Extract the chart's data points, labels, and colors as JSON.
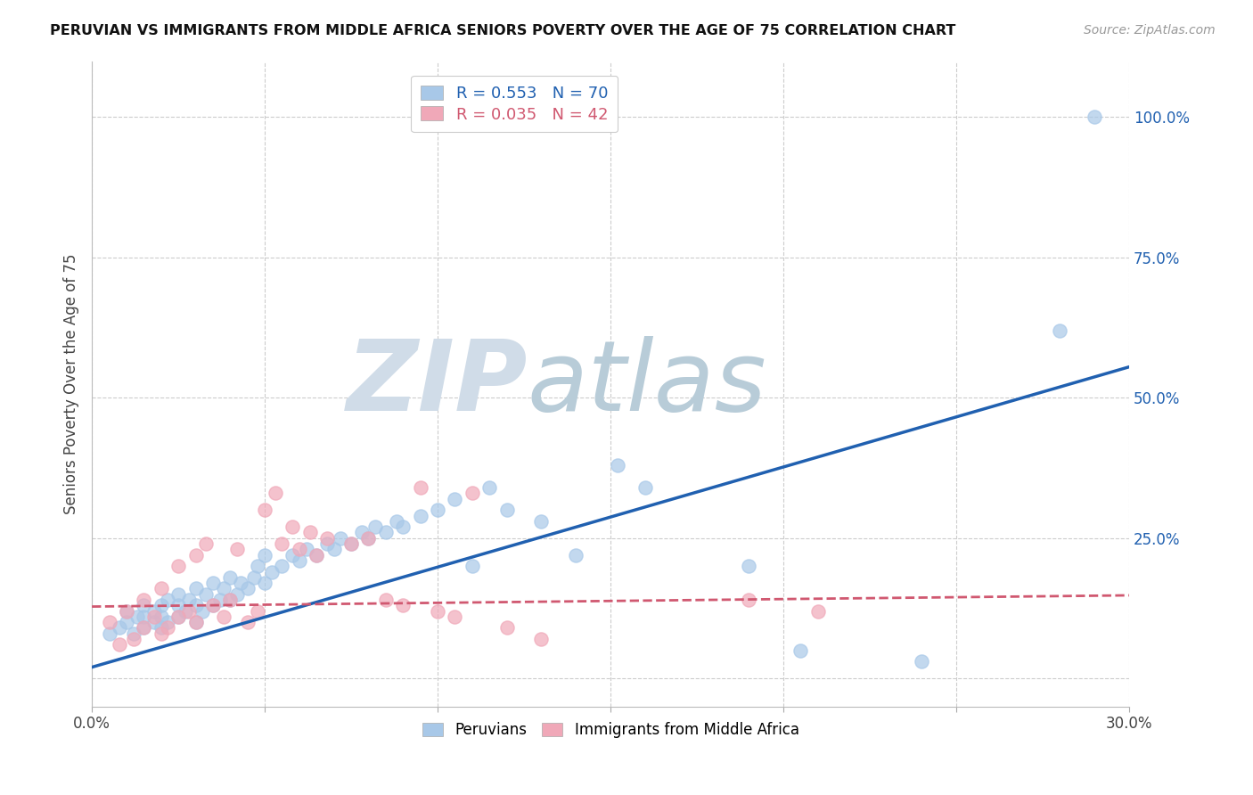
{
  "title": "PERUVIAN VS IMMIGRANTS FROM MIDDLE AFRICA SENIORS POVERTY OVER THE AGE OF 75 CORRELATION CHART",
  "source": "Source: ZipAtlas.com",
  "ylabel": "Seniors Poverty Over the Age of 75",
  "xlim": [
    0.0,
    0.3
  ],
  "ylim": [
    -0.05,
    1.1
  ],
  "blue_R": 0.553,
  "blue_N": 70,
  "pink_R": 0.035,
  "pink_N": 42,
  "blue_color": "#a8c8e8",
  "pink_color": "#f0a8b8",
  "blue_line_color": "#2060b0",
  "pink_line_color": "#d05870",
  "blue_trend_x0": 0.0,
  "blue_trend_y0": 0.02,
  "blue_trend_x1": 0.3,
  "blue_trend_y1": 0.555,
  "pink_trend_x0": 0.0,
  "pink_trend_y0": 0.128,
  "pink_trend_x1": 0.3,
  "pink_trend_y1": 0.148,
  "background_color": "#ffffff",
  "grid_color": "#cccccc",
  "watermark_zip_color": "#d0dce8",
  "watermark_atlas_color": "#b8ccd8",
  "blue_scatter_x": [
    0.005,
    0.008,
    0.01,
    0.01,
    0.012,
    0.013,
    0.015,
    0.015,
    0.015,
    0.018,
    0.018,
    0.02,
    0.02,
    0.02,
    0.022,
    0.022,
    0.025,
    0.025,
    0.025,
    0.027,
    0.028,
    0.03,
    0.03,
    0.03,
    0.032,
    0.033,
    0.035,
    0.035,
    0.037,
    0.038,
    0.04,
    0.04,
    0.042,
    0.043,
    0.045,
    0.047,
    0.048,
    0.05,
    0.05,
    0.052,
    0.055,
    0.058,
    0.06,
    0.062,
    0.065,
    0.068,
    0.07,
    0.072,
    0.075,
    0.078,
    0.08,
    0.082,
    0.085,
    0.088,
    0.09,
    0.095,
    0.1,
    0.105,
    0.11,
    0.115,
    0.12,
    0.13,
    0.14,
    0.152,
    0.16,
    0.19,
    0.205,
    0.24,
    0.28,
    0.29
  ],
  "blue_scatter_y": [
    0.08,
    0.09,
    0.1,
    0.12,
    0.08,
    0.11,
    0.09,
    0.11,
    0.13,
    0.1,
    0.12,
    0.09,
    0.11,
    0.13,
    0.1,
    0.14,
    0.11,
    0.13,
    0.15,
    0.12,
    0.14,
    0.1,
    0.13,
    0.16,
    0.12,
    0.15,
    0.13,
    0.17,
    0.14,
    0.16,
    0.14,
    0.18,
    0.15,
    0.17,
    0.16,
    0.18,
    0.2,
    0.17,
    0.22,
    0.19,
    0.2,
    0.22,
    0.21,
    0.23,
    0.22,
    0.24,
    0.23,
    0.25,
    0.24,
    0.26,
    0.25,
    0.27,
    0.26,
    0.28,
    0.27,
    0.29,
    0.3,
    0.32,
    0.2,
    0.34,
    0.3,
    0.28,
    0.22,
    0.38,
    0.34,
    0.2,
    0.05,
    0.03,
    0.62,
    1.0
  ],
  "pink_scatter_x": [
    0.005,
    0.008,
    0.01,
    0.012,
    0.015,
    0.015,
    0.018,
    0.02,
    0.02,
    0.022,
    0.025,
    0.025,
    0.028,
    0.03,
    0.03,
    0.033,
    0.035,
    0.038,
    0.04,
    0.042,
    0.045,
    0.048,
    0.05,
    0.053,
    0.055,
    0.058,
    0.06,
    0.063,
    0.065,
    0.068,
    0.075,
    0.08,
    0.085,
    0.09,
    0.095,
    0.1,
    0.105,
    0.11,
    0.12,
    0.13,
    0.19,
    0.21
  ],
  "pink_scatter_y": [
    0.1,
    0.06,
    0.12,
    0.07,
    0.09,
    0.14,
    0.11,
    0.08,
    0.16,
    0.09,
    0.11,
    0.2,
    0.12,
    0.22,
    0.1,
    0.24,
    0.13,
    0.11,
    0.14,
    0.23,
    0.1,
    0.12,
    0.3,
    0.33,
    0.24,
    0.27,
    0.23,
    0.26,
    0.22,
    0.25,
    0.24,
    0.25,
    0.14,
    0.13,
    0.34,
    0.12,
    0.11,
    0.33,
    0.09,
    0.07,
    0.14,
    0.12
  ]
}
